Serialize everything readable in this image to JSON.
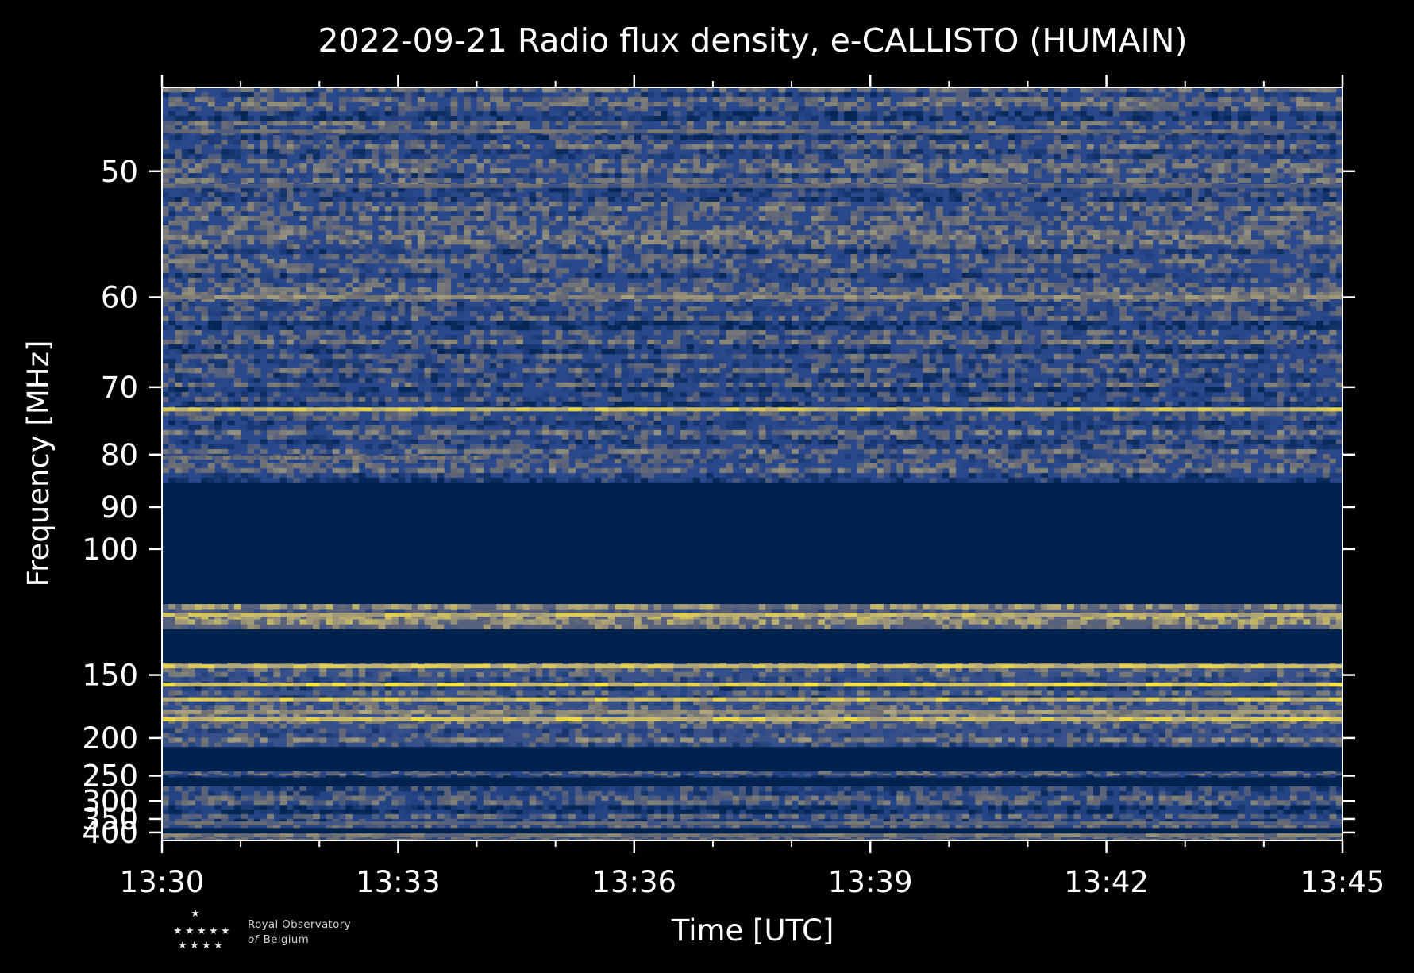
{
  "chart_data": {
    "type": "heatmap",
    "title": "2022-09-21 Radio flux density, e-CALLISTO (HUMAIN)",
    "xlabel": "Time [UTC]",
    "ylabel": "Frequency [MHz]",
    "x_ticks": [
      "13:30",
      "13:33",
      "13:36",
      "13:39",
      "13:42",
      "13:45"
    ],
    "x_range_minutes": [
      0,
      15
    ],
    "y_ticks": [
      50,
      60,
      70,
      80,
      90,
      100,
      150,
      200,
      250,
      300,
      350,
      400
    ],
    "y_scale": "reciprocal",
    "y_range": [
      45,
      437
    ],
    "colormap": [
      "#00224e",
      "#2c4a8f",
      "#6e6e72",
      "#b5a97a",
      "#fee838"
    ],
    "bands": [
      {
        "f_low": 45,
        "f_high": 85,
        "kind": "noise",
        "intensity": 0.32
      },
      {
        "f_low": 85,
        "f_high": 117,
        "kind": "empty",
        "intensity": 0.0
      },
      {
        "f_low": 117,
        "f_high": 127,
        "kind": "noise",
        "intensity": 0.55
      },
      {
        "f_low": 127,
        "f_high": 143,
        "kind": "empty",
        "intensity": 0.0
      },
      {
        "f_low": 143,
        "f_high": 210,
        "kind": "noise",
        "intensity": 0.4
      },
      {
        "f_low": 210,
        "f_high": 243,
        "kind": "empty",
        "intensity": 0.0
      },
      {
        "f_low": 243,
        "f_high": 253,
        "kind": "noise",
        "intensity": 0.3
      },
      {
        "f_low": 253,
        "f_high": 269,
        "kind": "empty",
        "intensity": 0.0
      },
      {
        "f_low": 269,
        "f_high": 382,
        "kind": "noise",
        "intensity": 0.28
      },
      {
        "f_low": 382,
        "f_high": 410,
        "kind": "empty",
        "intensity": 0.0
      },
      {
        "f_low": 410,
        "f_high": 437,
        "kind": "noise",
        "intensity": 0.28
      }
    ],
    "bright_lines_mhz": [
      {
        "f": 47.5,
        "intensity": 0.6,
        "t_start": 0,
        "t_end": 15
      },
      {
        "f": 51,
        "intensity": 0.55,
        "t_start": 0,
        "t_end": 15
      },
      {
        "f": 60,
        "intensity": 0.72,
        "t_start": 0,
        "t_end": 15
      },
      {
        "f": 73,
        "intensity": 0.95,
        "t_start": 0,
        "t_end": 15
      },
      {
        "f": 80.5,
        "intensity": 0.6,
        "t_start": 0,
        "t_end": 4.1
      },
      {
        "f": 121,
        "intensity": 0.9,
        "t_start": 0,
        "t_end": 15
      },
      {
        "f": 145,
        "intensity": 0.95,
        "t_start": 0,
        "t_end": 15
      },
      {
        "f": 156,
        "intensity": 1.0,
        "t_start": 0,
        "t_end": 15
      },
      {
        "f": 166,
        "intensity": 0.95,
        "t_start": 0,
        "t_end": 15
      },
      {
        "f": 176,
        "intensity": 0.75,
        "t_start": 0,
        "t_end": 15
      },
      {
        "f": 182,
        "intensity": 0.95,
        "t_start": 0,
        "t_end": 15
      },
      {
        "f": 365,
        "intensity": 0.55,
        "t_start": 0,
        "t_end": 15
      },
      {
        "f": 413,
        "intensity": 0.65,
        "t_start": 0,
        "t_end": 15
      }
    ]
  },
  "logo": {
    "name_line1": "Royal Observatory",
    "name_line2_italic": "of",
    "name_line2": "Belgium",
    "icon": "star-cluster-icon"
  }
}
